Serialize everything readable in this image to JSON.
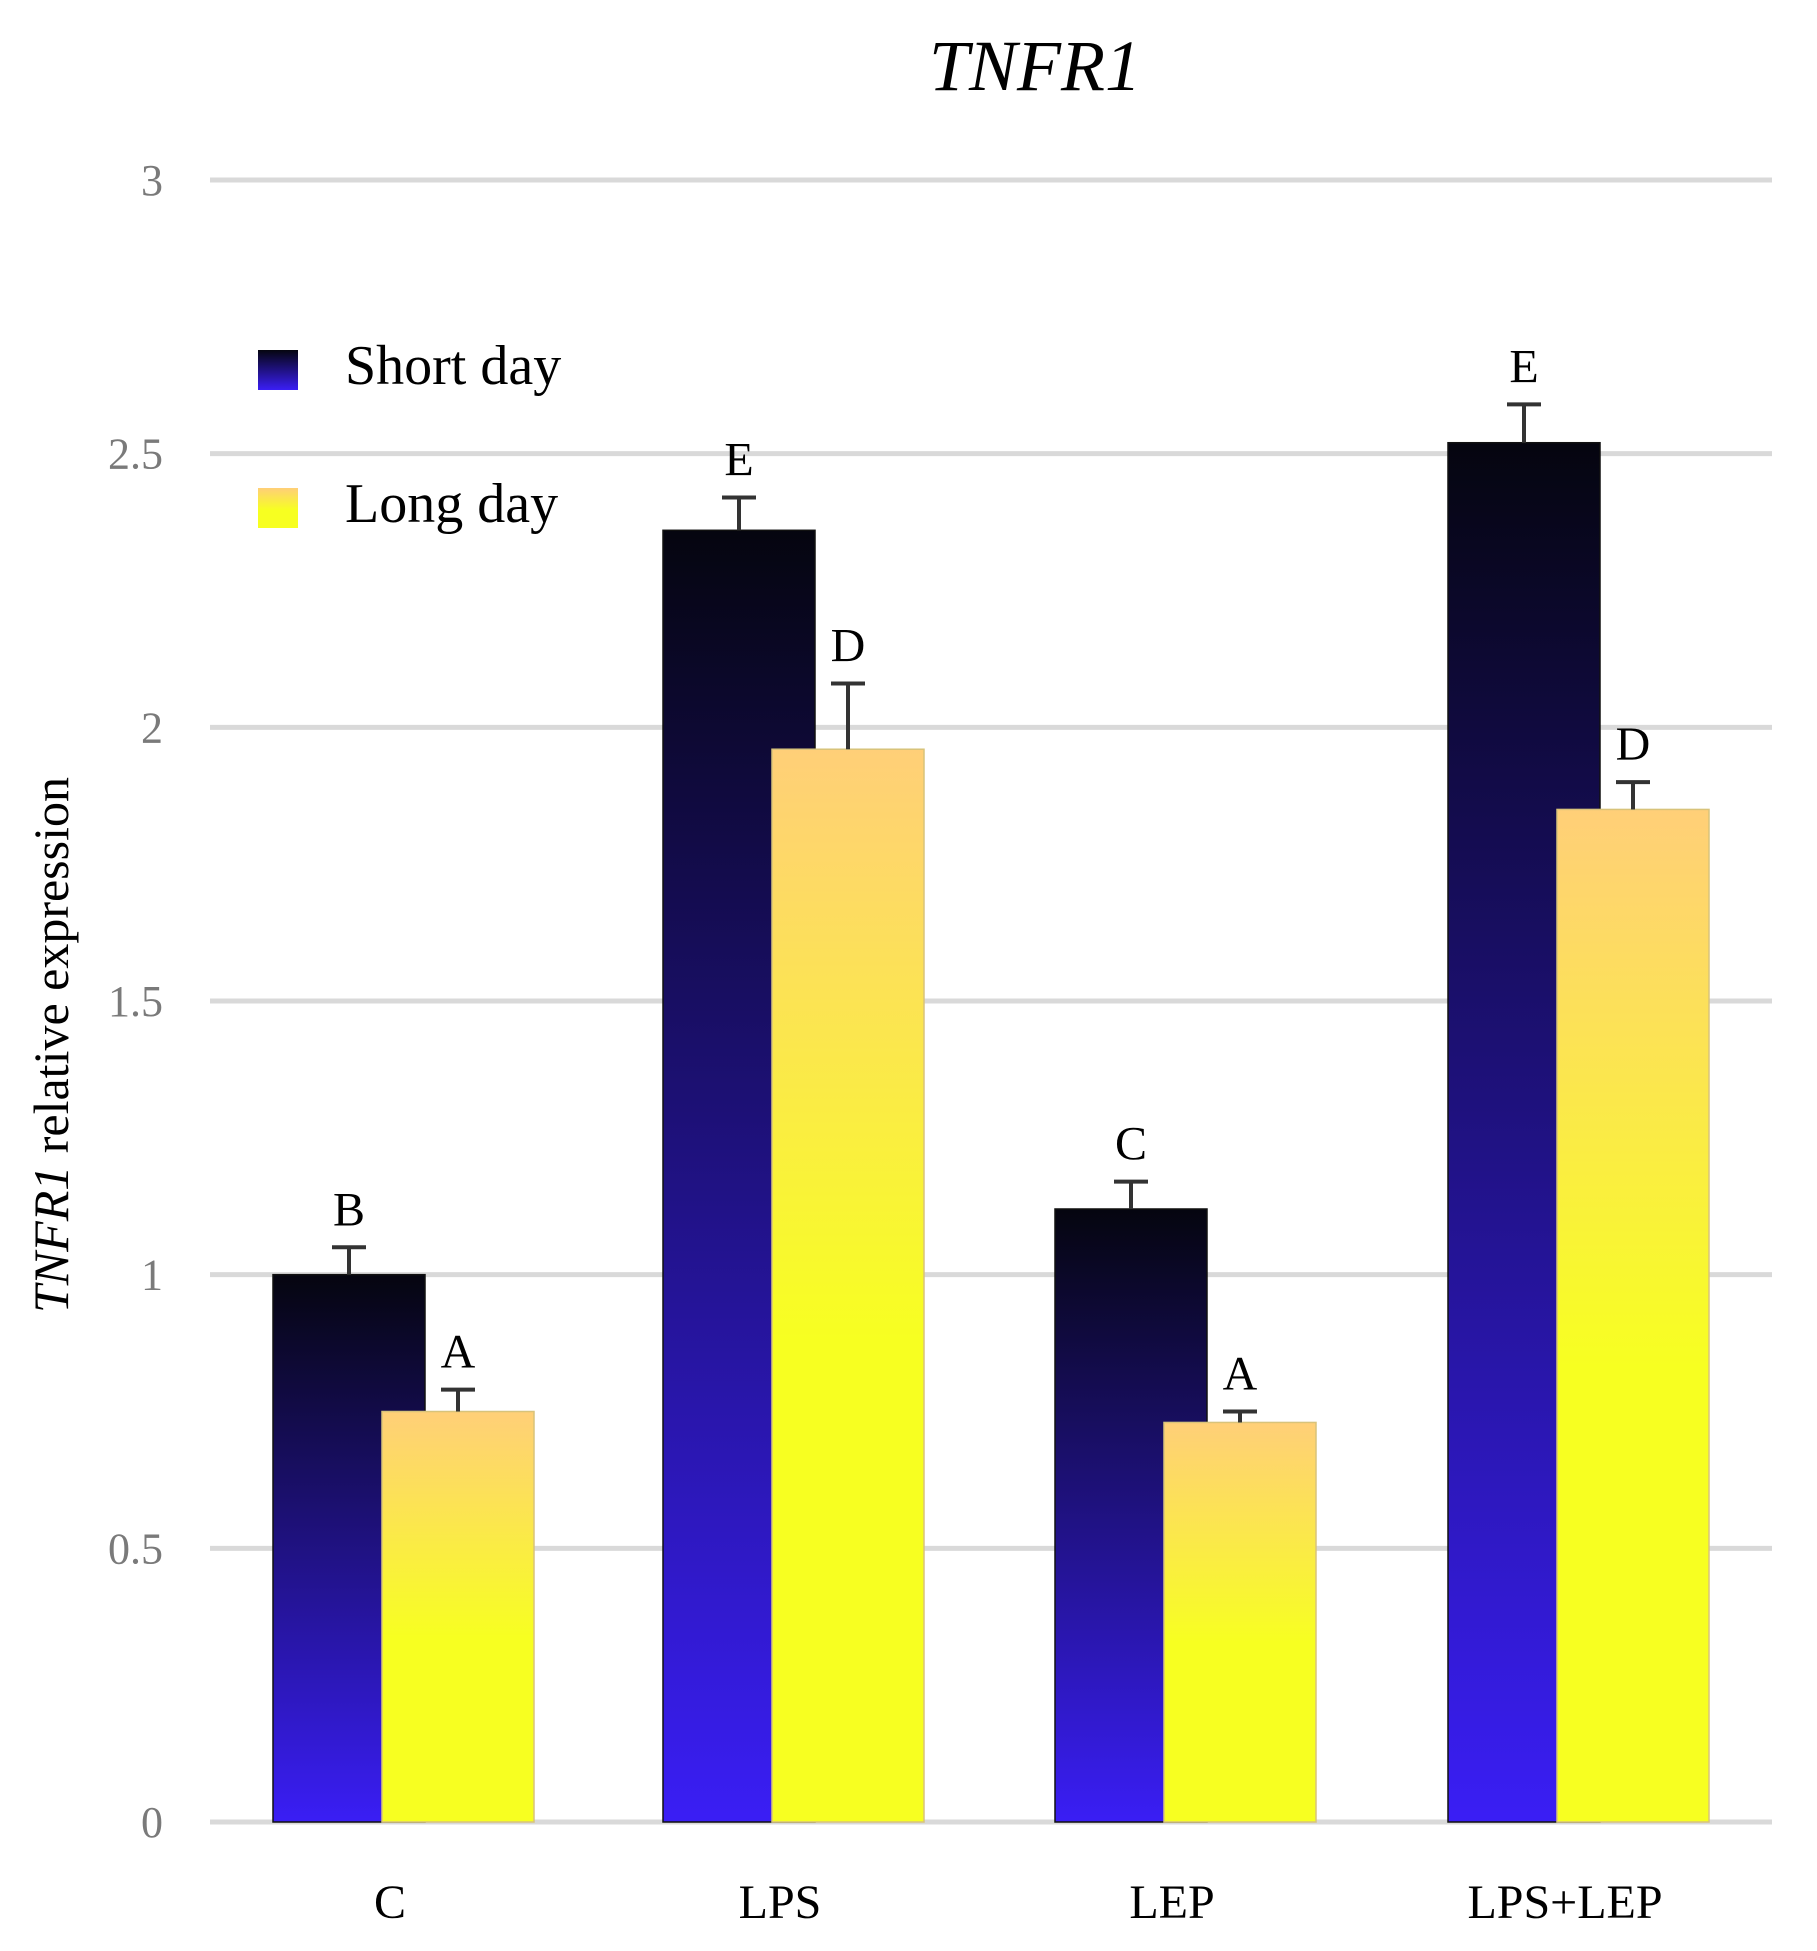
{
  "chart_data": {
    "type": "bar",
    "title": "TNFR1",
    "ylabel_gene": "TNFR1",
    "ylabel_rest": " relative expression",
    "xlabel": "",
    "ylim": [
      0,
      3
    ],
    "yticks": [
      "0",
      "0.5",
      "1",
      "1.5",
      "2",
      "2.5",
      "3"
    ],
    "ytick_values": [
      0,
      0.5,
      1,
      1.5,
      2,
      2.5,
      3
    ],
    "grid": true,
    "legend_position": "top-left",
    "categories": [
      "C",
      "LPS",
      "LEP",
      "LPS+LEP"
    ],
    "series": [
      {
        "name": "Short day",
        "color_top": "#05050f",
        "color_bottom": "#3a1ef5",
        "values": [
          1.0,
          2.36,
          1.12,
          2.52
        ],
        "errors": [
          0.05,
          0.06,
          0.05,
          0.07
        ],
        "significance": [
          "B",
          "E",
          "C",
          "E"
        ]
      },
      {
        "name": "Long day",
        "color_top": "#ffcf78",
        "color_bottom": "#f7ff21",
        "values": [
          0.75,
          1.96,
          0.73,
          1.85
        ],
        "errors": [
          0.04,
          0.12,
          0.02,
          0.05
        ],
        "significance": [
          "A",
          "D",
          "A",
          "D"
        ]
      }
    ]
  }
}
